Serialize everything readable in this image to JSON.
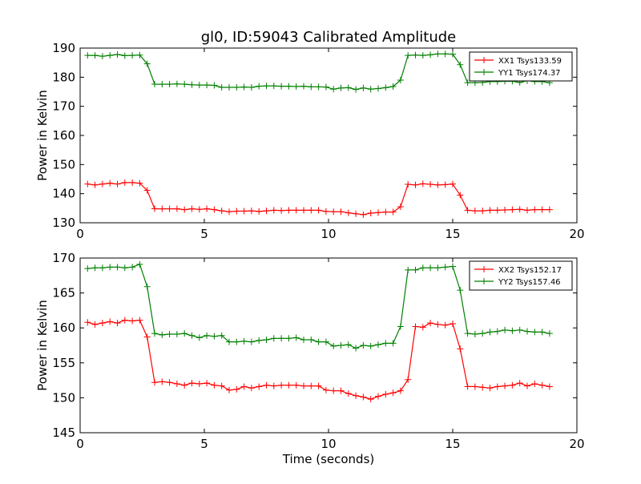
{
  "title": "gl0, ID:59043 Calibrated Amplitude",
  "chart_data": [
    {
      "type": "line",
      "title": "gl0, ID:59043 Calibrated Amplitude",
      "xlabel": "",
      "ylabel": "Power in Kelvin",
      "xlim": [
        0,
        20
      ],
      "ylim": [
        130,
        190
      ],
      "xticks": [
        "0",
        "5",
        "10",
        "15",
        "20"
      ],
      "yticks": [
        "130",
        "140",
        "150",
        "160",
        "170",
        "180",
        "190"
      ],
      "legend_position": "top-right",
      "grid": false,
      "x": [
        0.3,
        0.6,
        0.9,
        1.2,
        1.5,
        1.8,
        2.1,
        2.4,
        2.7,
        3.0,
        3.3,
        3.6,
        3.9,
        4.2,
        4.5,
        4.8,
        5.1,
        5.4,
        5.7,
        6.0,
        6.3,
        6.6,
        6.9,
        7.2,
        7.5,
        7.8,
        8.1,
        8.4,
        8.7,
        9.0,
        9.3,
        9.6,
        9.9,
        10.2,
        10.5,
        10.8,
        11.1,
        11.4,
        11.7,
        12.0,
        12.3,
        12.6,
        12.9,
        13.2,
        13.5,
        13.8,
        14.1,
        14.4,
        14.7,
        15.0,
        15.3,
        15.6,
        15.9,
        16.2,
        16.5,
        16.8,
        17.1,
        17.4,
        17.7,
        18.0,
        18.3,
        18.6,
        18.9
      ],
      "series": [
        {
          "name": "XX1 Tsys133.59",
          "color": "#ff0000",
          "values": [
            143.3,
            143.0,
            143.3,
            143.6,
            143.3,
            143.8,
            143.8,
            143.6,
            141.1,
            134.8,
            134.8,
            134.8,
            134.8,
            134.5,
            134.8,
            134.6,
            134.8,
            134.5,
            134.1,
            133.8,
            134.0,
            134.0,
            134.1,
            133.9,
            134.1,
            134.3,
            134.2,
            134.3,
            134.3,
            134.3,
            134.3,
            134.3,
            133.9,
            133.8,
            133.8,
            133.4,
            133.1,
            132.8,
            133.3,
            133.5,
            133.7,
            133.7,
            135.5,
            143.2,
            143.0,
            143.4,
            143.2,
            143.0,
            143.1,
            143.3,
            139.5,
            134.3,
            134.1,
            134.1,
            134.3,
            134.3,
            134.4,
            134.5,
            134.6,
            134.3,
            134.5,
            134.5,
            134.5
          ]
        },
        {
          "name": "YY1 Tsys174.37",
          "color": "#008000",
          "values": [
            187.5,
            187.5,
            187.2,
            187.5,
            187.8,
            187.4,
            187.5,
            187.6,
            184.6,
            177.6,
            177.6,
            177.6,
            177.7,
            177.6,
            177.4,
            177.3,
            177.3,
            177.2,
            176.5,
            176.5,
            176.5,
            176.6,
            176.5,
            176.9,
            177.0,
            177.0,
            176.9,
            176.9,
            176.8,
            176.9,
            176.7,
            176.7,
            176.6,
            175.9,
            176.3,
            176.4,
            175.8,
            176.3,
            175.9,
            176.1,
            176.4,
            176.8,
            179.0,
            187.5,
            187.6,
            187.5,
            187.7,
            188.0,
            188.0,
            187.9,
            184.3,
            178.1,
            178.1,
            178.2,
            178.5,
            178.5,
            178.6,
            178.6,
            178.2,
            178.8,
            178.5,
            178.5,
            178.1
          ]
        }
      ]
    },
    {
      "type": "line",
      "title": "",
      "xlabel": "Time (seconds)",
      "ylabel": "Power in Kelvin",
      "xlim": [
        0,
        20
      ],
      "ylim": [
        145,
        170
      ],
      "xticks": [
        "0",
        "5",
        "10",
        "15",
        "20"
      ],
      "yticks": [
        "145",
        "150",
        "155",
        "160",
        "165",
        "170"
      ],
      "legend_position": "top-right",
      "grid": false,
      "x": [
        0.3,
        0.6,
        0.9,
        1.2,
        1.5,
        1.8,
        2.1,
        2.4,
        2.7,
        3.0,
        3.3,
        3.6,
        3.9,
        4.2,
        4.5,
        4.8,
        5.1,
        5.4,
        5.7,
        6.0,
        6.3,
        6.6,
        6.9,
        7.2,
        7.5,
        7.8,
        8.1,
        8.4,
        8.7,
        9.0,
        9.3,
        9.6,
        9.9,
        10.2,
        10.5,
        10.8,
        11.1,
        11.4,
        11.7,
        12.0,
        12.3,
        12.6,
        12.9,
        13.2,
        13.5,
        13.8,
        14.1,
        14.4,
        14.7,
        15.0,
        15.3,
        15.6,
        15.9,
        16.2,
        16.5,
        16.8,
        17.1,
        17.4,
        17.7,
        18.0,
        18.3,
        18.6,
        18.9
      ],
      "series": [
        {
          "name": "XX2 Tsys152.17",
          "color": "#ff0000",
          "values": [
            160.8,
            160.5,
            160.7,
            160.9,
            160.7,
            161.1,
            161.0,
            161.1,
            158.7,
            152.2,
            152.3,
            152.2,
            152.0,
            151.8,
            152.1,
            152.0,
            152.1,
            151.8,
            151.7,
            151.1,
            151.2,
            151.6,
            151.4,
            151.6,
            151.8,
            151.7,
            151.8,
            151.8,
            151.8,
            151.7,
            151.7,
            151.7,
            151.1,
            151.0,
            151.0,
            150.6,
            150.3,
            150.1,
            149.8,
            150.2,
            150.5,
            150.7,
            151.0,
            152.6,
            160.2,
            160.1,
            160.7,
            160.5,
            160.4,
            160.6,
            157.0,
            151.6,
            151.6,
            151.5,
            151.4,
            151.6,
            151.7,
            151.8,
            152.1,
            151.7,
            152.0,
            151.8,
            151.6
          ]
        },
        {
          "name": "YY2 Tsys157.46",
          "color": "#008000",
          "values": [
            168.5,
            168.6,
            168.6,
            168.7,
            168.7,
            168.6,
            168.7,
            169.1,
            165.9,
            159.2,
            159.0,
            159.1,
            159.1,
            159.2,
            158.9,
            158.6,
            158.9,
            158.8,
            158.9,
            158.0,
            158.0,
            158.1,
            158.0,
            158.2,
            158.3,
            158.5,
            158.5,
            158.5,
            158.6,
            158.3,
            158.3,
            158.0,
            158.0,
            157.4,
            157.5,
            157.6,
            157.1,
            157.5,
            157.4,
            157.6,
            157.8,
            157.8,
            160.2,
            168.3,
            168.3,
            168.6,
            168.6,
            168.6,
            168.7,
            168.8,
            165.4,
            159.2,
            159.1,
            159.2,
            159.4,
            159.5,
            159.7,
            159.6,
            159.7,
            159.5,
            159.4,
            159.4,
            159.2
          ]
        }
      ]
    }
  ]
}
